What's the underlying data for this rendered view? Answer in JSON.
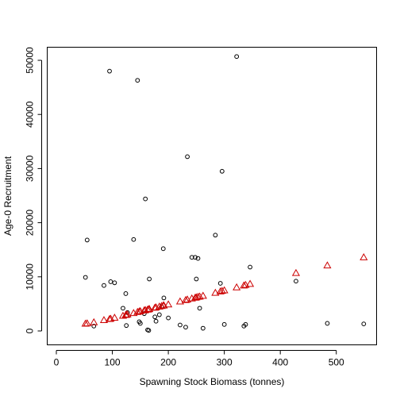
{
  "chart_data": {
    "type": "scatter",
    "xlabel": "Spawning Stock Biomass (tonnes)",
    "ylabel": "Age-0 Recruitment",
    "xlim": [
      0,
      550
    ],
    "ylim": [
      0,
      50000
    ],
    "x_ticks": [
      0,
      100,
      200,
      300,
      400,
      500
    ],
    "y_ticks": [
      0,
      10000,
      20000,
      30000,
      40000,
      50000
    ],
    "grid": false,
    "colors": {
      "observed": "#000000",
      "predicted": "#cc0000"
    },
    "series": [
      {
        "marker": "circle",
        "points": [
          [
            52,
            9900
          ],
          [
            55,
            16800
          ],
          [
            67,
            900
          ],
          [
            85,
            8400
          ],
          [
            95,
            48000
          ],
          [
            97,
            9100
          ],
          [
            104,
            8900
          ],
          [
            119,
            4200
          ],
          [
            124,
            6900
          ],
          [
            125,
            1000
          ],
          [
            127,
            3400
          ],
          [
            138,
            16900
          ],
          [
            145,
            46300
          ],
          [
            148,
            1700
          ],
          [
            150,
            1400
          ],
          [
            157,
            3200
          ],
          [
            159,
            24400
          ],
          [
            163,
            200
          ],
          [
            165,
            100
          ],
          [
            166,
            9600
          ],
          [
            176,
            2600
          ],
          [
            178,
            1800
          ],
          [
            184,
            3000
          ],
          [
            188,
            4500
          ],
          [
            191,
            15200
          ],
          [
            192,
            6100
          ],
          [
            200,
            2400
          ],
          [
            221,
            1100
          ],
          [
            231,
            700
          ],
          [
            234,
            32200
          ],
          [
            242,
            13600
          ],
          [
            248,
            13600
          ],
          [
            250,
            9600
          ],
          [
            253,
            13400
          ],
          [
            256,
            4200
          ],
          [
            262,
            500
          ],
          [
            284,
            17700
          ],
          [
            293,
            8800
          ],
          [
            296,
            29500
          ],
          [
            300,
            1200
          ],
          [
            322,
            50700
          ],
          [
            335,
            900
          ],
          [
            338,
            1200
          ],
          [
            346,
            11800
          ],
          [
            428,
            9200
          ],
          [
            484,
            1400
          ],
          [
            549,
            1300
          ]
        ]
      },
      {
        "marker": "triangle",
        "points": [
          [
            52,
            1350
          ],
          [
            55,
            1400
          ],
          [
            67,
            1600
          ],
          [
            85,
            2000
          ],
          [
            95,
            2200
          ],
          [
            97,
            2250
          ],
          [
            104,
            2450
          ],
          [
            119,
            2800
          ],
          [
            124,
            2950
          ],
          [
            125,
            3000
          ],
          [
            127,
            3050
          ],
          [
            138,
            3300
          ],
          [
            145,
            3500
          ],
          [
            148,
            3600
          ],
          [
            150,
            3650
          ],
          [
            157,
            3800
          ],
          [
            159,
            3850
          ],
          [
            163,
            3950
          ],
          [
            165,
            4000
          ],
          [
            166,
            4050
          ],
          [
            176,
            4300
          ],
          [
            178,
            4350
          ],
          [
            184,
            4500
          ],
          [
            188,
            4600
          ],
          [
            191,
            4700
          ],
          [
            192,
            4720
          ],
          [
            200,
            4900
          ],
          [
            221,
            5450
          ],
          [
            231,
            5700
          ],
          [
            234,
            5800
          ],
          [
            242,
            6000
          ],
          [
            248,
            6150
          ],
          [
            250,
            6200
          ],
          [
            253,
            6300
          ],
          [
            256,
            6350
          ],
          [
            262,
            6500
          ],
          [
            284,
            7050
          ],
          [
            293,
            7300
          ],
          [
            296,
            7400
          ],
          [
            300,
            7500
          ],
          [
            322,
            8050
          ],
          [
            335,
            8400
          ],
          [
            338,
            8500
          ],
          [
            346,
            8700
          ],
          [
            428,
            10700
          ],
          [
            484,
            12100
          ],
          [
            549,
            13600
          ]
        ]
      }
    ]
  }
}
